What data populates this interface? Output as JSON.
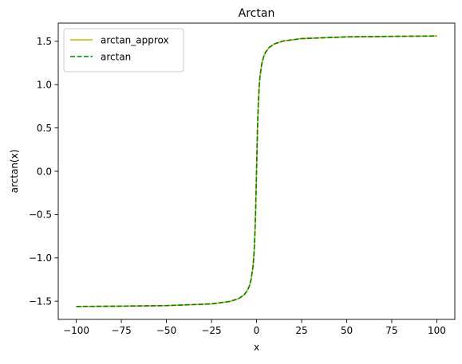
{
  "chart_data": {
    "type": "line",
    "title": "Arctan",
    "xlabel": "x",
    "ylabel": "arctan(x)",
    "xlim": [
      -110,
      110
    ],
    "ylim": [
      -1.71,
      1.71
    ],
    "x_ticks": [
      -100,
      -75,
      -50,
      -25,
      0,
      25,
      50,
      75,
      100
    ],
    "x_tick_labels": [
      "−100",
      "−75",
      "−50",
      "−25",
      "0",
      "25",
      "50",
      "75",
      "100"
    ],
    "y_ticks": [
      -1.5,
      -1.0,
      -0.5,
      0.0,
      0.5,
      1.0,
      1.5
    ],
    "y_tick_labels": [
      "−1.5",
      "−1.0",
      "−0.5",
      "0.0",
      "0.5",
      "1.0",
      "1.5"
    ],
    "grid": false,
    "legend_position": "top-left",
    "series": [
      {
        "name": "arctan_approx",
        "color": "#bfbf00",
        "style": "solid",
        "x": [
          -100,
          -75,
          -50,
          -25,
          -15,
          -10,
          -7,
          -5,
          -4,
          -3,
          -2,
          -1.5,
          -1,
          -0.5,
          0,
          0.5,
          1,
          1.5,
          2,
          3,
          4,
          5,
          7,
          10,
          15,
          25,
          50,
          75,
          100
        ],
        "y": [
          -1.561,
          -1.557,
          -1.551,
          -1.531,
          -1.504,
          -1.471,
          -1.429,
          -1.373,
          -1.326,
          -1.249,
          -1.107,
          -0.983,
          -0.785,
          -0.464,
          0.0,
          0.464,
          0.785,
          0.983,
          1.107,
          1.249,
          1.326,
          1.373,
          1.429,
          1.471,
          1.504,
          1.531,
          1.551,
          1.557,
          1.561
        ]
      },
      {
        "name": "arctan",
        "color": "#008000",
        "style": "dashed",
        "x": [
          -100,
          -75,
          -50,
          -25,
          -15,
          -10,
          -7,
          -5,
          -4,
          -3,
          -2,
          -1.5,
          -1,
          -0.5,
          0,
          0.5,
          1,
          1.5,
          2,
          3,
          4,
          5,
          7,
          10,
          15,
          25,
          50,
          75,
          100
        ],
        "y": [
          -1.561,
          -1.557,
          -1.551,
          -1.531,
          -1.504,
          -1.471,
          -1.429,
          -1.373,
          -1.326,
          -1.249,
          -1.107,
          -0.983,
          -0.785,
          -0.464,
          0.0,
          0.464,
          0.785,
          0.983,
          1.107,
          1.249,
          1.326,
          1.373,
          1.429,
          1.471,
          1.504,
          1.531,
          1.551,
          1.557,
          1.561
        ]
      }
    ]
  }
}
